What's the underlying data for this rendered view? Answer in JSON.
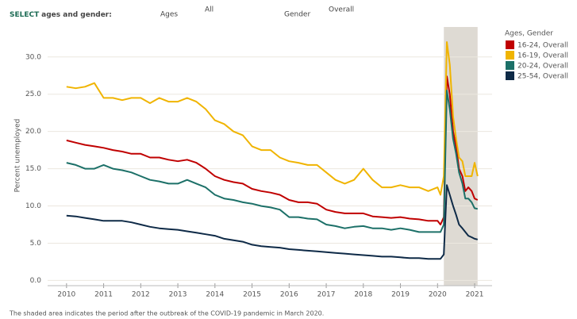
{
  "controls": {
    "select": "SELECT",
    "prompt": "ages and gender:",
    "ages_label": "Ages",
    "ages_value": "All",
    "gender_label": "Gender",
    "gender_value": "Overall"
  },
  "chart_data": {
    "type": "line",
    "y_label": "Percent unemployed",
    "legend_title": "Ages, Gender",
    "note": "The shaded area indicates the period after the outbreak of the COVID-19 pandemic in March 2020.",
    "shaded_range": [
      2020.17,
      2021.08
    ],
    "x": [
      2010.0,
      2010.25,
      2010.5,
      2010.75,
      2011.0,
      2011.25,
      2011.5,
      2011.75,
      2012.0,
      2012.25,
      2012.5,
      2012.75,
      2013.0,
      2013.25,
      2013.5,
      2013.75,
      2014.0,
      2014.25,
      2014.5,
      2014.75,
      2015.0,
      2015.25,
      2015.5,
      2015.75,
      2016.0,
      2016.25,
      2016.5,
      2016.75,
      2017.0,
      2017.25,
      2017.5,
      2017.75,
      2018.0,
      2018.25,
      2018.5,
      2018.75,
      2019.0,
      2019.25,
      2019.5,
      2019.75,
      2020.0,
      2020.08,
      2020.17,
      2020.25,
      2020.33,
      2020.42,
      2020.5,
      2020.58,
      2020.67,
      2020.75,
      2020.83,
      2020.92,
      2021.0,
      2021.08
    ],
    "series": [
      {
        "name": "16-24, Overall",
        "color": "#c00000",
        "values": [
          18.8,
          18.5,
          18.2,
          18,
          17.8,
          17.5,
          17.3,
          17,
          17,
          16.5,
          16.5,
          16.2,
          16,
          16.2,
          15.8,
          15,
          14,
          13.5,
          13.2,
          13,
          12.3,
          12,
          11.8,
          11.5,
          10.8,
          10.5,
          10.5,
          10.3,
          9.5,
          9.2,
          9,
          9,
          9,
          8.6,
          8.5,
          8.4,
          8.5,
          8.3,
          8.2,
          8,
          8,
          7.5,
          8.5,
          27.4,
          25,
          20,
          18,
          15,
          14,
          12,
          12.5,
          12,
          11,
          10.8
        ]
      },
      {
        "name": "16-19, Overall",
        "color": "#f0b400",
        "values": [
          26,
          25.8,
          26,
          26.5,
          24.5,
          24.5,
          24.2,
          24.5,
          24.5,
          23.8,
          24.5,
          24,
          24,
          24.5,
          24,
          23,
          21.5,
          21,
          20,
          19.5,
          18,
          17.5,
          17.5,
          16.5,
          16,
          15.8,
          15.5,
          15.5,
          14.5,
          13.5,
          13,
          13.5,
          15,
          13.5,
          12.5,
          12.5,
          12.8,
          12.5,
          12.5,
          12,
          12.5,
          11.5,
          14,
          32,
          29,
          22,
          19,
          16.5,
          16,
          14,
          14,
          14,
          15.8,
          14
        ]
      },
      {
        "name": "20-24, Overall",
        "color": "#1c7068",
        "values": [
          15.8,
          15.5,
          15,
          15,
          15.5,
          15,
          14.8,
          14.5,
          14,
          13.5,
          13.3,
          13,
          13,
          13.5,
          13,
          12.5,
          11.5,
          11,
          10.8,
          10.5,
          10.3,
          10,
          9.8,
          9.5,
          8.5,
          8.5,
          8.3,
          8.2,
          7.5,
          7.3,
          7,
          7.2,
          7.3,
          7,
          7,
          6.8,
          7,
          6.8,
          6.5,
          6.5,
          6.5,
          6.5,
          7.5,
          25.5,
          23,
          19,
          17,
          14.5,
          13,
          11,
          11,
          10.5,
          9.7,
          9.6
        ]
      },
      {
        "name": "25-54, Overall",
        "color": "#0e2a47",
        "values": [
          8.7,
          8.6,
          8.4,
          8.2,
          8,
          8,
          8,
          7.8,
          7.5,
          7.2,
          7,
          6.9,
          6.8,
          6.6,
          6.4,
          6.2,
          6,
          5.6,
          5.4,
          5.2,
          4.8,
          4.6,
          4.5,
          4.4,
          4.2,
          4.1,
          4,
          3.9,
          3.8,
          3.7,
          3.6,
          3.5,
          3.4,
          3.3,
          3.2,
          3.2,
          3.1,
          3,
          3,
          2.9,
          2.9,
          2.9,
          3.5,
          12.8,
          11.5,
          10,
          8.8,
          7.5,
          7,
          6.5,
          6,
          5.8,
          5.6,
          5.5
        ]
      }
    ],
    "xlim": [
      2009.49,
      2021.47
    ],
    "xticks": [
      2010,
      2011,
      2012,
      2013,
      2014,
      2015,
      2016,
      2017,
      2018,
      2019,
      2020,
      2021
    ],
    "ylim": [
      -0.7,
      33.6
    ],
    "yticks": [
      {
        "value": 0,
        "label": "0.0"
      },
      {
        "value": 5,
        "label": "5.0"
      },
      {
        "value": 10,
        "label": "10.0"
      },
      {
        "value": 15,
        "label": "15.0"
      },
      {
        "value": 20,
        "label": "20.0"
      },
      {
        "value": 25,
        "label": "25.0"
      },
      {
        "value": 30,
        "label": "30.0"
      }
    ],
    "grid": true,
    "shade_color": "#dedad3"
  }
}
